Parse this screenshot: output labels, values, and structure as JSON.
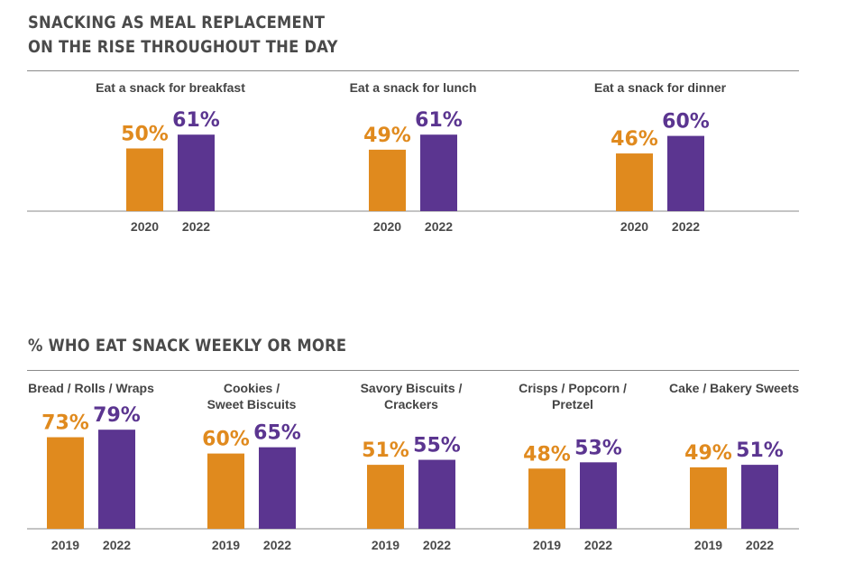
{
  "colors": {
    "older": "#E08A1E",
    "newer": "#5B3590",
    "text": "#4a4a4a",
    "axis": "#8a8a8a"
  },
  "chart_data": [
    {
      "type": "bar",
      "title": "SNACKING AS MEAL REPLACEMENT ON THE RISE THROUGHOUT THE DAY",
      "title_lines": [
        "SNACKING AS MEAL REPLACEMENT",
        "ON THE RISE THROUGHOUT THE DAY"
      ],
      "groups": [
        {
          "category": "Eat a snack for breakfast",
          "category_lines": [
            "Eat a snack for breakfast"
          ],
          "x": [
            "2020",
            "2022"
          ],
          "values": [
            50,
            61
          ],
          "labels": [
            "50%",
            "61%"
          ]
        },
        {
          "category": "Eat a snack for lunch",
          "category_lines": [
            "Eat a snack for lunch"
          ],
          "x": [
            "2020",
            "2022"
          ],
          "values": [
            49,
            61
          ],
          "labels": [
            "49%",
            "61%"
          ]
        },
        {
          "category": "Eat a snack for dinner",
          "category_lines": [
            "Eat a snack for dinner"
          ],
          "x": [
            "2020",
            "2022"
          ],
          "values": [
            46,
            60
          ],
          "labels": [
            "46%",
            "60%"
          ]
        }
      ],
      "ylim": [
        0,
        100
      ]
    },
    {
      "type": "bar",
      "title": "% WHO EAT SNACK WEEKLY OR MORE",
      "title_lines": [
        "% WHO EAT SNACK WEEKLY OR MORE"
      ],
      "groups": [
        {
          "category": "Bread / Rolls / Wraps",
          "category_lines": [
            "Bread / Rolls / Wraps"
          ],
          "x": [
            "2019",
            "2022"
          ],
          "values": [
            73,
            79
          ],
          "labels": [
            "73%",
            "79%"
          ]
        },
        {
          "category": "Cookies / Sweet Biscuits",
          "category_lines": [
            "Cookies /",
            "Sweet Biscuits"
          ],
          "x": [
            "2019",
            "2022"
          ],
          "values": [
            60,
            65
          ],
          "labels": [
            "60%",
            "65%"
          ]
        },
        {
          "category": "Savory Biscuits / Crackers",
          "category_lines": [
            "Savory Biscuits /",
            "Crackers"
          ],
          "x": [
            "2019",
            "2022"
          ],
          "values": [
            51,
            55
          ],
          "labels": [
            "51%",
            "55%"
          ]
        },
        {
          "category": "Crisps / Popcorn / Pretzel",
          "category_lines": [
            "Crisps / Popcorn /",
            "Pretzel"
          ],
          "x": [
            "2019",
            "2022"
          ],
          "values": [
            48,
            53
          ],
          "labels": [
            "48%",
            "53%"
          ]
        },
        {
          "category": "Cake / Bakery Sweets",
          "category_lines": [
            "Cake / Bakery Sweets"
          ],
          "x": [
            "2019",
            "2022"
          ],
          "values": [
            49,
            51
          ],
          "labels": [
            "49%",
            "51%"
          ]
        }
      ],
      "ylim": [
        0,
        100
      ]
    }
  ]
}
